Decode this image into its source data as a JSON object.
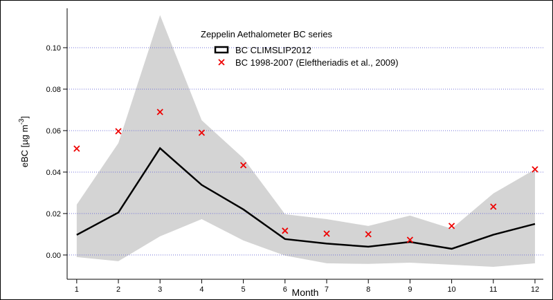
{
  "chart_data": {
    "type": "line",
    "legend_title": "Zeppelin Aethalometer BC series",
    "xlabel": "Month",
    "ylabel_parts": [
      "eBC [µg m",
      "-3",
      "]"
    ],
    "x": [
      1,
      2,
      3,
      4,
      5,
      6,
      7,
      8,
      9,
      10,
      11,
      12
    ],
    "xlim": [
      0.77,
      12.2
    ],
    "xticks": [
      1,
      2,
      3,
      4,
      5,
      6,
      7,
      8,
      9,
      10,
      11,
      12
    ],
    "ylim": [
      -0.0117,
      0.119
    ],
    "yticks": [
      {
        "value": 0,
        "label": "0.00"
      },
      {
        "value": 0.02,
        "label": "0.02"
      },
      {
        "value": 0.04,
        "label": "0.04"
      },
      {
        "value": 0.06,
        "label": "0.06"
      },
      {
        "value": 0.08,
        "label": "0.08"
      },
      {
        "value": 0.1,
        "label": "0.10"
      }
    ],
    "grid": true,
    "band": {
      "color": "#d4d4d4",
      "upper": [
        0.0243,
        0.054,
        0.1157,
        0.065,
        0.0467,
        0.0197,
        0.0173,
        0.014,
        0.019,
        0.0127,
        0.0297,
        0.0413
      ],
      "lower": [
        -0.001,
        -0.003,
        0.009,
        0.0173,
        0.007,
        -0.0003,
        -0.004,
        -0.0043,
        -0.0037,
        -0.0047,
        -0.0057,
        -0.004
      ]
    },
    "series": [
      {
        "name": "BC CLIMSLIP2012",
        "color": "#000000",
        "marker": "line",
        "values": [
          0.0097,
          0.0205,
          0.0515,
          0.0338,
          0.022,
          0.0077,
          0.0055,
          0.004,
          0.0063,
          0.003,
          0.0098,
          0.015
        ]
      },
      {
        "name": "BC 1998-2007 (Eleftheriadis et al., 2009)",
        "color": "#ee0000",
        "marker": "x",
        "values": [
          0.0513,
          0.0597,
          0.069,
          0.059,
          0.0433,
          0.0117,
          0.0103,
          0.01,
          0.0073,
          0.014,
          0.0233,
          0.0413
        ]
      }
    ]
  }
}
